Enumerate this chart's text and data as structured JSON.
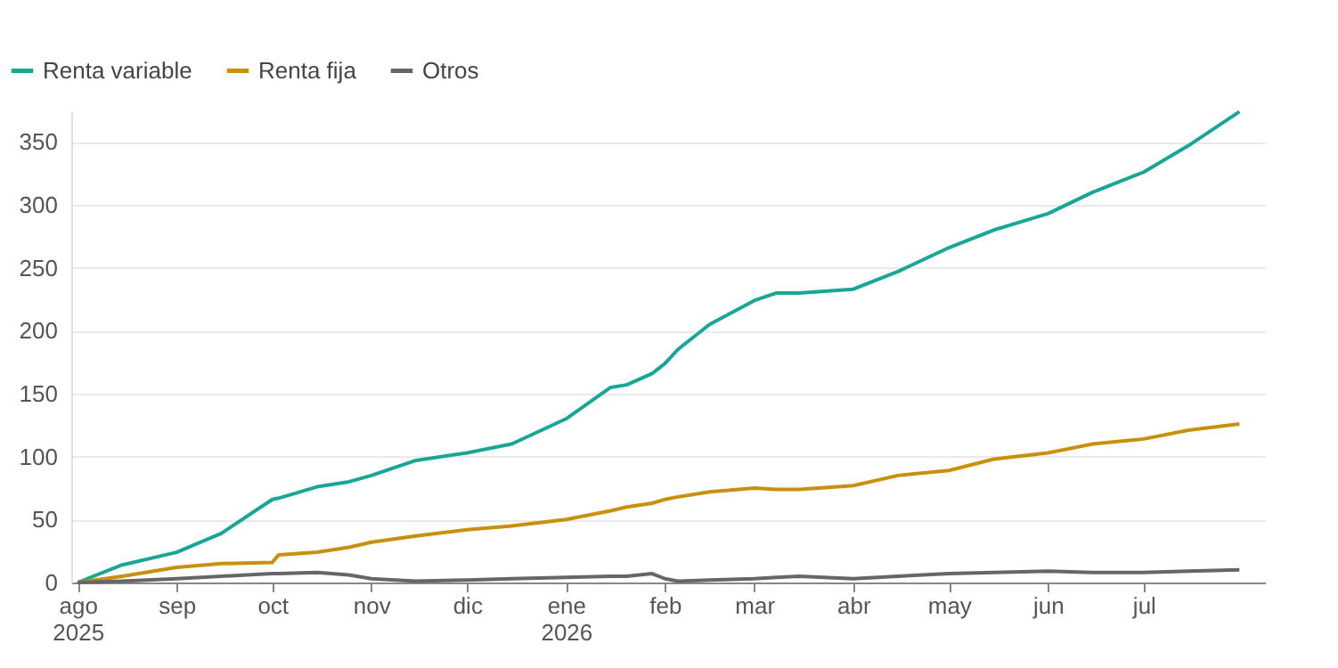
{
  "chart_data": {
    "type": "line",
    "x": [
      "2025-08-01",
      "2025-08-15",
      "2025-09-01",
      "2025-09-15",
      "2025-10-01",
      "2025-10-03",
      "2025-10-15",
      "2025-10-25",
      "2025-11-01",
      "2025-11-15",
      "2025-12-01",
      "2025-12-15",
      "2026-01-01",
      "2026-01-15",
      "2026-01-20",
      "2026-01-28",
      "2026-02-01",
      "2026-02-05",
      "2026-02-15",
      "2026-03-01",
      "2026-03-08",
      "2026-03-15",
      "2026-04-01",
      "2026-04-15",
      "2026-05-01",
      "2026-05-15",
      "2026-06-01",
      "2026-06-15",
      "2026-07-01",
      "2026-07-15",
      "2026-07-31"
    ],
    "series": [
      {
        "name": "Renta variable",
        "color": "#1aa595",
        "values": [
          0,
          14,
          24,
          39,
          66,
          67,
          76,
          80,
          85,
          97,
          103,
          110,
          130,
          155,
          157,
          166,
          174,
          185,
          205,
          224,
          230,
          230,
          233,
          247,
          266,
          280,
          293,
          310,
          326,
          347,
          374
        ]
      },
      {
        "name": "Renta fija",
        "color": "#c8900e",
        "values": [
          0,
          5,
          12,
          15,
          16,
          22,
          24,
          28,
          32,
          37,
          42,
          45,
          50,
          57,
          60,
          63,
          66,
          68,
          72,
          75,
          74,
          74,
          77,
          85,
          89,
          98,
          103,
          110,
          114,
          121,
          126
        ]
      },
      {
        "name": "Otros",
        "color": "#666666",
        "values": [
          0,
          1,
          3,
          5,
          7,
          7,
          8,
          6,
          3,
          1,
          2,
          3,
          4,
          5,
          5,
          7,
          3,
          1,
          2,
          3,
          4,
          5,
          3,
          5,
          7,
          8,
          9,
          8,
          8,
          9,
          10
        ]
      }
    ],
    "xlim": [
      "2025-07-30",
      "2026-08-08"
    ],
    "xticks": [
      {
        "value": "2025-08-01",
        "label": "ago\n2025"
      },
      {
        "value": "2025-09-01",
        "label": "sep"
      },
      {
        "value": "2025-10-01",
        "label": "oct"
      },
      {
        "value": "2025-11-01",
        "label": "nov"
      },
      {
        "value": "2025-12-01",
        "label": "dic"
      },
      {
        "value": "2026-01-01",
        "label": "ene\n2026"
      },
      {
        "value": "2026-02-01",
        "label": "feb"
      },
      {
        "value": "2026-03-01",
        "label": "mar"
      },
      {
        "value": "2026-04-01",
        "label": "abr"
      },
      {
        "value": "2026-05-01",
        "label": "may"
      },
      {
        "value": "2026-06-01",
        "label": "jun"
      },
      {
        "value": "2026-07-01",
        "label": "jul"
      }
    ],
    "ylim": [
      0,
      375
    ],
    "yticks": [
      0,
      50,
      100,
      150,
      200,
      250,
      300,
      350
    ],
    "grid": "y",
    "legend": "top left",
    "marker": "none",
    "line_style": "solid"
  }
}
